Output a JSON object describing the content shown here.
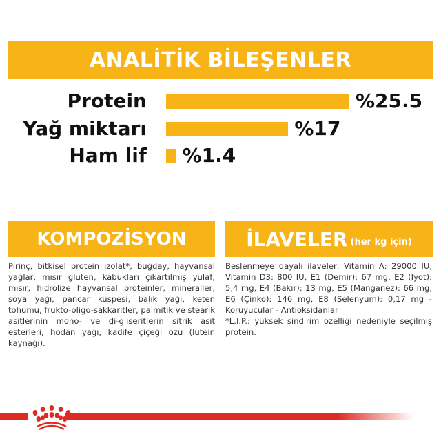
{
  "header": {
    "title": "ANALİTİK BİLEŞENLER"
  },
  "chart_data": {
    "type": "bar",
    "orientation": "horizontal",
    "categories": [
      "Protein",
      "Yağ miktarı",
      "Ham lif"
    ],
    "values": [
      25.5,
      17,
      1.4
    ],
    "value_labels": [
      "%25.5",
      "%17",
      "%1.4"
    ],
    "unit": "%",
    "color": "#F8B416"
  },
  "composition": {
    "title": "KOMPOZİSYON",
    "text": "Pirinç, bitkisel protein izolat*, buğday, hayvansal yağlar, mısır gluten, kabukları çıkartılmış yulaf, mısır, hidrolize hayvansal proteinler, mineraller, soya yağı, pancar küspesi, balık yağı, keten tohumu, frukto-oligo-sakkaritler, palmitik ve stearik asitlerinin mono- ve di-gliseritlerin sitrik asit esterleri, hodan yağı, kadife çiçeği özü (lutein kaynağı)."
  },
  "additives": {
    "title": "İLAVELER",
    "subtitle": "(her kg için)",
    "text": "Beslenmeye dayalı ilaveler: Vitamin A: 29000 IU, Vitamin D3: 800 IU, E1 (Demir): 67 mg, E2 (Iyot): 5,4 mg, E4 (Bakır): 13 mg, E5 (Manganez): 66 mg, E6 (Çinko): 146 mg, E8 (Selenyum): 0,17 mg - Koruyucular - Antioksidanlar",
    "footnote": "*L.I.P.: yüksek sindirim özelliği nedeniyle seçilmiş protein."
  },
  "brand": {
    "logo": "royal-canin-crown",
    "color": "#DD2A22"
  }
}
